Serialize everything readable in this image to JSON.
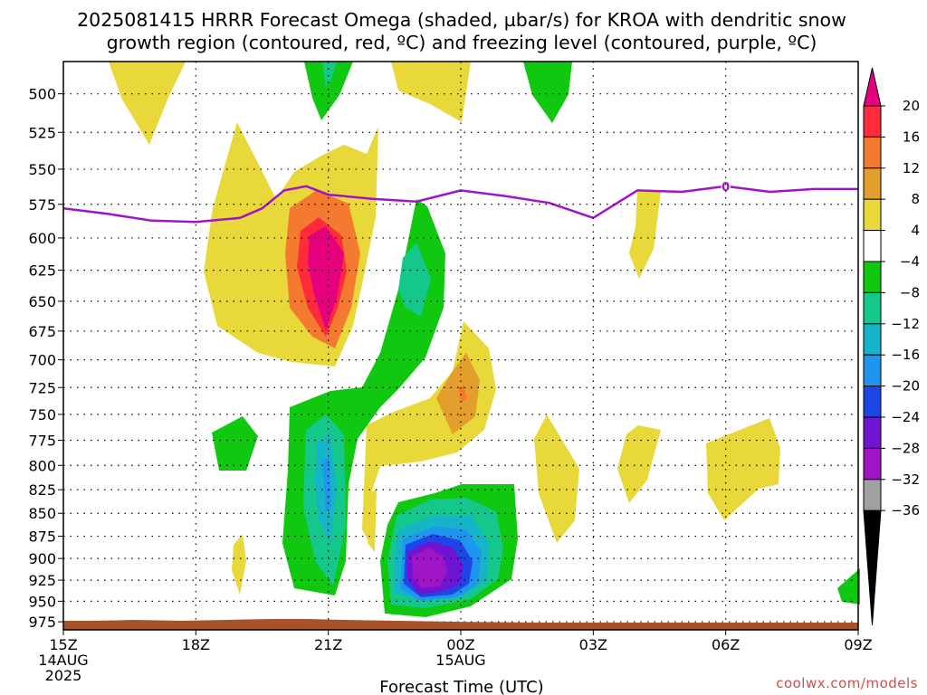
{
  "title": {
    "line1": "2025081415 HRRR Forecast Omega (shaded, µbar/s) for KROA with dendritic snow",
    "line2": "growth region (contoured, red, ºC) and freezing level (contoured, purple, ºC)"
  },
  "credit": "coolwx.com/models",
  "chart_data": {
    "type": "time-height cross section",
    "title": "2025081415 HRRR Forecast Omega (shaded, µbar/s) for KROA with dendritic snow growth region (contoured, red, ºC) and freezing level (contoured, purple, ºC)",
    "xlabel": "Forecast Time (UTC)",
    "ylabel": "",
    "x_ticks": [
      {
        "hour": 0,
        "lines": [
          "15Z",
          "14AUG",
          "2025"
        ]
      },
      {
        "hour": 3,
        "lines": [
          "18Z"
        ]
      },
      {
        "hour": 6,
        "lines": [
          "21Z"
        ]
      },
      {
        "hour": 9,
        "lines": [
          "00Z",
          "15AUG"
        ]
      },
      {
        "hour": 12,
        "lines": [
          "03Z"
        ]
      },
      {
        "hour": 15,
        "lines": [
          "06Z"
        ]
      },
      {
        "hour": 18,
        "lines": [
          "09Z"
        ]
      }
    ],
    "xlim": [
      0,
      18
    ],
    "y_ticks": [
      500,
      525,
      550,
      575,
      600,
      625,
      650,
      675,
      700,
      725,
      750,
      775,
      800,
      825,
      850,
      875,
      900,
      925,
      950,
      975
    ],
    "y_scale": "log-pressure (inverted)",
    "ylim": [
      985,
      480
    ],
    "grid": true,
    "colorbar": {
      "units": "µbar/s",
      "labels": [
        "20",
        "16",
        "12",
        "8",
        "4",
        "−4",
        "−8",
        "−12",
        "−16",
        "−20",
        "−24",
        "−28",
        "−32",
        "−36"
      ],
      "bins": [
        {
          "range": "> 20",
          "color": "#e6007d"
        },
        {
          "range": "16 to 20",
          "color": "#ff2a3c"
        },
        {
          "range": "12 to 16",
          "color": "#f47a30"
        },
        {
          "range": "8 to 12",
          "color": "#e39e2c"
        },
        {
          "range": "4 to 8",
          "color": "#e8d83a"
        },
        {
          "range": "-4 to 4",
          "color": "#ffffff"
        },
        {
          "range": "-8 to -4",
          "color": "#0fc80f"
        },
        {
          "range": "-12 to -8",
          "color": "#14c88c"
        },
        {
          "range": "-16 to -12",
          "color": "#16b4c8"
        },
        {
          "range": "-20 to -16",
          "color": "#1e96f0"
        },
        {
          "range": "-24 to -20",
          "color": "#1e46e6"
        },
        {
          "range": "-28 to -24",
          "color": "#6e14d2"
        },
        {
          "range": "-32 to -28",
          "color": "#a014c8"
        },
        {
          "range": "-36 to -32",
          "color": "#a0a0a0"
        },
        {
          "range": "< -36",
          "color": "#000000"
        }
      ]
    },
    "freezing_level": {
      "color": "#a014c8",
      "contour_label": "0",
      "points": [
        {
          "hour": 0.0,
          "p": 578
        },
        {
          "hour": 1.0,
          "p": 582
        },
        {
          "hour": 2.0,
          "p": 587
        },
        {
          "hour": 3.0,
          "p": 588
        },
        {
          "hour": 4.0,
          "p": 585
        },
        {
          "hour": 4.5,
          "p": 578
        },
        {
          "hour": 5.0,
          "p": 565
        },
        {
          "hour": 5.5,
          "p": 562
        },
        {
          "hour": 6.0,
          "p": 568
        },
        {
          "hour": 7.0,
          "p": 571
        },
        {
          "hour": 8.0,
          "p": 573
        },
        {
          "hour": 9.0,
          "p": 565
        },
        {
          "hour": 10.0,
          "p": 569
        },
        {
          "hour": 11.0,
          "p": 574
        },
        {
          "hour": 12.0,
          "p": 585
        },
        {
          "hour": 13.0,
          "p": 565
        },
        {
          "hour": 14.0,
          "p": 566
        },
        {
          "hour": 15.0,
          "p": 562
        },
        {
          "hour": 16.0,
          "p": 566
        },
        {
          "hour": 17.0,
          "p": 564
        },
        {
          "hour": 18.0,
          "p": 564
        }
      ]
    },
    "surface": {
      "color": "#a8522d",
      "pressure_top": 980
    }
  }
}
